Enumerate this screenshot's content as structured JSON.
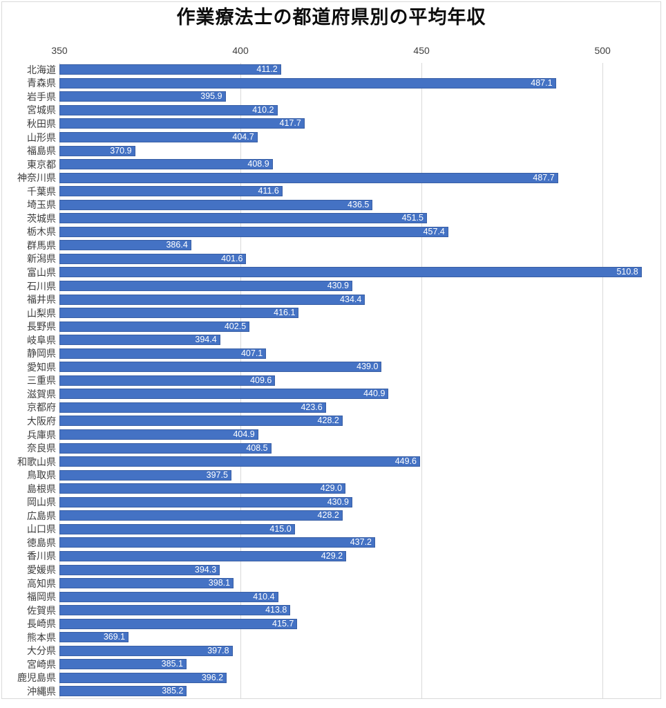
{
  "title": "作業療法士の都道府県別の平均年収",
  "colors": {
    "bar_fill": "#4472C4",
    "bar_border": "#2F528F",
    "value_label_text": "#FFFFFF",
    "gridline": "#D9D9D9",
    "axis_text": "#404040",
    "title_text": "#0D0D0D",
    "chart_frame_border": "#D9D9D9",
    "background": "#FFFFFF"
  },
  "chart_data": {
    "type": "bar",
    "orientation": "horizontal",
    "title": "作業療法士の都道府県別の平均年収",
    "xlabel": "",
    "ylabel": "",
    "xlim": [
      350,
      516
    ],
    "x_ticks": [
      350,
      400,
      450,
      500
    ],
    "x_ticks_position": "top",
    "grid": true,
    "value_labels_position": "inside-end",
    "value_labels_decimals": 1,
    "categories": [
      "北海道",
      "青森県",
      "岩手県",
      "宮城県",
      "秋田県",
      "山形県",
      "福島県",
      "東京都",
      "神奈川県",
      "千葉県",
      "埼玉県",
      "茨城県",
      "栃木県",
      "群馬県",
      "新潟県",
      "富山県",
      "石川県",
      "福井県",
      "山梨県",
      "長野県",
      "岐阜県",
      "静岡県",
      "愛知県",
      "三重県",
      "滋賀県",
      "京都府",
      "大阪府",
      "兵庫県",
      "奈良県",
      "和歌山県",
      "鳥取県",
      "島根県",
      "岡山県",
      "広島県",
      "山口県",
      "徳島県",
      "香川県",
      "愛媛県",
      "高知県",
      "福岡県",
      "佐賀県",
      "長崎県",
      "熊本県",
      "大分県",
      "宮崎県",
      "鹿児島県",
      "沖縄県"
    ],
    "values": [
      411.2,
      487.1,
      395.9,
      410.2,
      417.7,
      404.7,
      370.9,
      408.9,
      487.7,
      411.6,
      436.5,
      451.5,
      457.4,
      386.4,
      401.6,
      510.8,
      430.9,
      434.4,
      416.1,
      402.5,
      394.4,
      407.1,
      439.0,
      409.6,
      440.9,
      423.6,
      428.2,
      404.9,
      408.5,
      449.6,
      397.5,
      429.0,
      430.9,
      428.2,
      415.0,
      437.2,
      429.2,
      394.3,
      398.1,
      410.4,
      413.8,
      415.7,
      369.1,
      397.8,
      385.1,
      396.2,
      385.2
    ]
  }
}
